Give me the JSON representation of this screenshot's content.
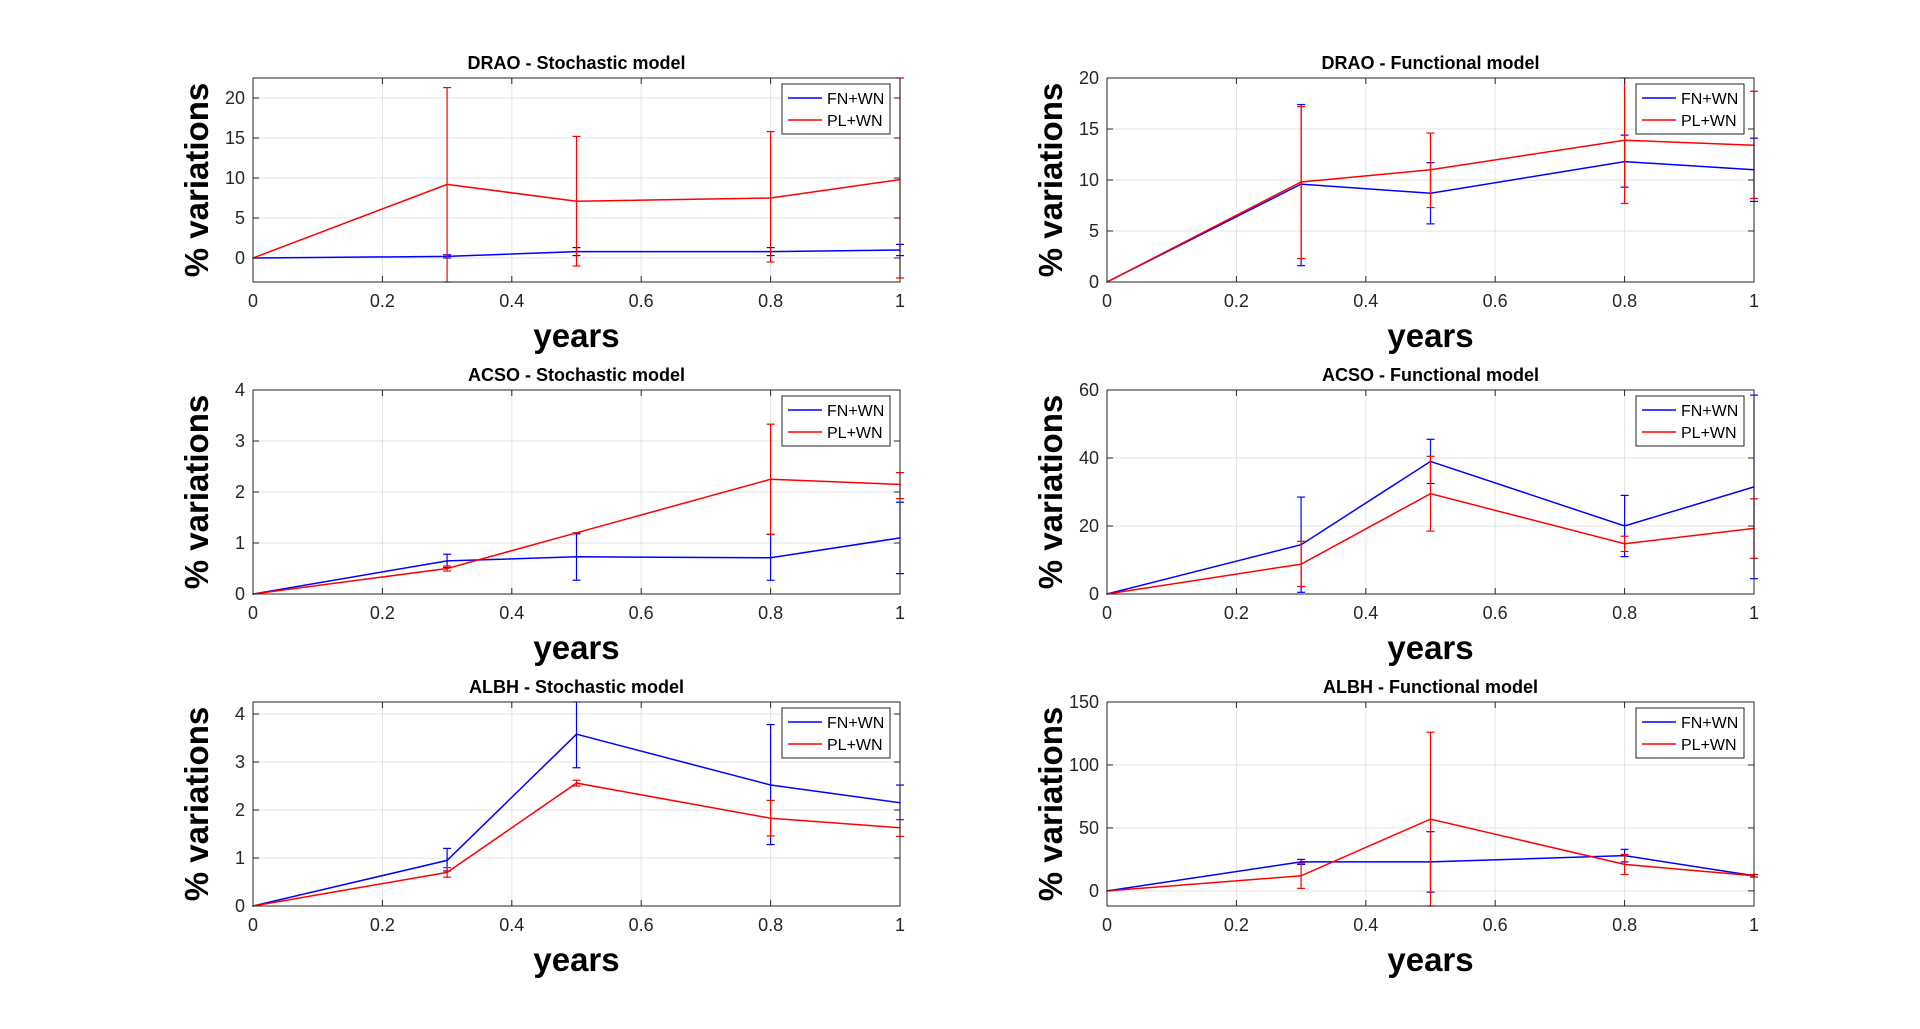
{
  "figure": {
    "x_tick_labels": [
      "0",
      "0.2",
      "0.4",
      "0.6",
      "0.8",
      "1"
    ],
    "ylabel": "% variations",
    "xlabel": "years"
  },
  "chart_data": [
    {
      "type": "line",
      "title": "DRAO - Stochastic model",
      "xlabel": "years",
      "ylabel": "% variations",
      "xlim": [
        0,
        1
      ],
      "ylim": [
        -3,
        22.5
      ],
      "yticks": [
        0,
        5,
        10,
        15,
        20
      ],
      "y_tick_labels": [
        "0",
        "5",
        "10",
        "15",
        "20"
      ],
      "legend": "top-right",
      "grid": true,
      "x": [
        0,
        0.3,
        0.5,
        0.8,
        1
      ],
      "series": [
        {
          "name": "FN+WN",
          "color": "#0000ff",
          "values": [
            0,
            0.2,
            0.8,
            0.8,
            1.0
          ],
          "err_low": [
            null,
            0,
            0.3,
            0.3,
            0.3
          ],
          "err_high": [
            null,
            0.4,
            1.3,
            1.3,
            1.7
          ]
        },
        {
          "name": "PL+WN",
          "color": "#ff0000",
          "values": [
            0,
            9.2,
            7.1,
            7.5,
            9.8
          ],
          "err_low": [
            null,
            -3,
            -1,
            -0.5,
            -2.5
          ],
          "err_high": [
            null,
            21.3,
            15.2,
            15.8,
            22.5
          ]
        }
      ]
    },
    {
      "type": "line",
      "title": "DRAO - Functional model",
      "xlabel": "years",
      "ylabel": "% variations",
      "xlim": [
        0,
        1
      ],
      "ylim": [
        0,
        20
      ],
      "yticks": [
        0,
        5,
        10,
        15,
        20
      ],
      "y_tick_labels": [
        "0",
        "5",
        "10",
        "15",
        "20"
      ],
      "legend": "top-right",
      "grid": true,
      "x": [
        0,
        0.3,
        0.5,
        0.8,
        1
      ],
      "series": [
        {
          "name": "FN+WN",
          "color": "#0000ff",
          "values": [
            0,
            9.6,
            8.7,
            11.8,
            11.0
          ],
          "err_low": [
            null,
            1.6,
            5.7,
            9.3,
            7.9
          ],
          "err_high": [
            null,
            17.4,
            11.7,
            14.4,
            14.1
          ]
        },
        {
          "name": "PL+WN",
          "color": "#ff0000",
          "values": [
            0,
            9.8,
            11.0,
            13.9,
            13.4
          ],
          "err_low": [
            null,
            2.3,
            7.3,
            7.7,
            8.2
          ],
          "err_high": [
            null,
            17.2,
            14.6,
            20.0,
            18.7
          ]
        }
      ]
    },
    {
      "type": "line",
      "title": "ACSO - Stochastic model",
      "xlabel": "years",
      "ylabel": "% variations",
      "xlim": [
        0,
        1
      ],
      "ylim": [
        0,
        4
      ],
      "yticks": [
        0,
        1,
        2,
        3,
        4
      ],
      "y_tick_labels": [
        "0",
        "1",
        "2",
        "3",
        "4"
      ],
      "legend": "top-right",
      "grid": true,
      "x": [
        0,
        0.3,
        0.5,
        0.8,
        1
      ],
      "series": [
        {
          "name": "FN+WN",
          "color": "#0000ff",
          "values": [
            0,
            0.65,
            0.73,
            0.71,
            1.1
          ],
          "err_low": [
            null,
            0.52,
            0.27,
            0.27,
            0.4
          ],
          "err_high": [
            null,
            0.78,
            1.18,
            1.17,
            1.8
          ]
        },
        {
          "name": "PL+WN",
          "color": "#ff0000",
          "values": [
            0,
            0.5,
            1.2,
            2.25,
            2.15
          ],
          "err_low": [
            null,
            0.45,
            1.2,
            1.17,
            1.87
          ],
          "err_high": [
            null,
            0.55,
            1.2,
            3.33,
            2.38
          ]
        }
      ]
    },
    {
      "type": "line",
      "title": "ACSO - Functional model",
      "xlabel": "years",
      "ylabel": "% variations",
      "xlim": [
        0,
        1
      ],
      "ylim": [
        0,
        60
      ],
      "yticks": [
        0,
        20,
        40,
        60
      ],
      "y_tick_labels": [
        "0",
        "20",
        "40",
        "60"
      ],
      "legend": "top-right",
      "grid": true,
      "x": [
        0,
        0.3,
        0.5,
        0.8,
        1
      ],
      "series": [
        {
          "name": "FN+WN",
          "color": "#0000ff",
          "values": [
            0,
            14.5,
            39,
            20,
            31.5
          ],
          "err_low": [
            null,
            0.5,
            32.5,
            11,
            4.5
          ],
          "err_high": [
            null,
            28.5,
            45.5,
            29,
            58.5
          ]
        },
        {
          "name": "PL+WN",
          "color": "#ff0000",
          "values": [
            0,
            8.8,
            29.5,
            14.8,
            19.3
          ],
          "err_low": [
            null,
            2.2,
            18.5,
            12.5,
            10.5
          ],
          "err_high": [
            null,
            15.5,
            40.5,
            17,
            28
          ]
        }
      ]
    },
    {
      "type": "line",
      "title": "ALBH - Stochastic model",
      "xlabel": "years",
      "ylabel": "% variations",
      "xlim": [
        0,
        1
      ],
      "ylim": [
        0,
        4.25
      ],
      "yticks": [
        0,
        1,
        2,
        3,
        4
      ],
      "y_tick_labels": [
        "0",
        "1",
        "2",
        "3",
        "4"
      ],
      "legend": "top-right",
      "grid": true,
      "x": [
        0,
        0.3,
        0.5,
        0.8,
        1
      ],
      "series": [
        {
          "name": "FN+WN",
          "color": "#0000ff",
          "values": [
            0,
            0.95,
            3.58,
            2.52,
            2.15
          ],
          "err_low": [
            null,
            0.73,
            2.88,
            1.28,
            1.8
          ],
          "err_high": [
            null,
            1.2,
            4.25,
            3.78,
            2.52
          ]
        },
        {
          "name": "PL+WN",
          "color": "#ff0000",
          "values": [
            0,
            0.7,
            2.56,
            1.83,
            1.63
          ],
          "err_low": [
            null,
            0.6,
            2.5,
            1.46,
            1.45
          ],
          "err_high": [
            null,
            0.8,
            2.62,
            2.2,
            1.8
          ]
        }
      ]
    },
    {
      "type": "line",
      "title": "ALBH - Functional model",
      "xlabel": "years",
      "ylabel": "% variations",
      "xlim": [
        0,
        1
      ],
      "ylim": [
        -12,
        150
      ],
      "yticks": [
        0,
        50,
        100,
        150
      ],
      "y_tick_labels": [
        "0",
        "50",
        "100",
        "150"
      ],
      "legend": "top-right",
      "grid": true,
      "x": [
        0,
        0.3,
        0.5,
        0.8,
        1
      ],
      "series": [
        {
          "name": "FN+WN",
          "color": "#0000ff",
          "values": [
            0,
            23,
            23,
            28,
            12
          ],
          "err_low": [
            null,
            21,
            -1,
            23,
            11
          ],
          "err_high": [
            null,
            25,
            47,
            33,
            13
          ]
        },
        {
          "name": "PL+WN",
          "color": "#ff0000",
          "values": [
            0,
            12,
            57,
            21,
            12
          ],
          "err_low": [
            null,
            2,
            -12,
            13,
            11
          ],
          "err_high": [
            null,
            22,
            126,
            29,
            13
          ]
        }
      ]
    }
  ]
}
